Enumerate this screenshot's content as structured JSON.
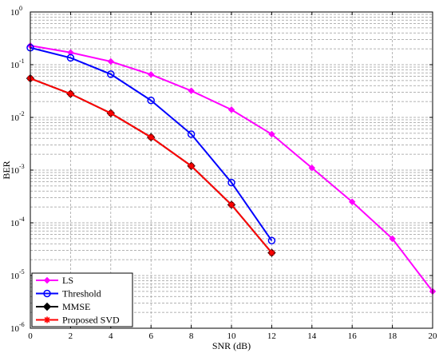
{
  "chart_data": {
    "type": "line",
    "title": "",
    "xlabel": "SNR (dB)",
    "ylabel": "BER",
    "xlim": [
      0,
      20
    ],
    "ylim": [
      1e-06,
      1
    ],
    "yscale": "log",
    "grid": true,
    "legend_position": "bottom-left",
    "x_ticks": [
      0,
      2,
      4,
      6,
      8,
      10,
      12,
      14,
      16,
      18,
      20
    ],
    "y_ticks": [
      {
        "base": "10",
        "exp": "0"
      },
      {
        "base": "10",
        "exp": "-1"
      },
      {
        "base": "10",
        "exp": "-2"
      },
      {
        "base": "10",
        "exp": "-3"
      },
      {
        "base": "10",
        "exp": "-4"
      },
      {
        "base": "10",
        "exp": "-5"
      },
      {
        "base": "10",
        "exp": "-6"
      }
    ],
    "series": [
      {
        "name": "LS",
        "color": "#ff00ff",
        "marker": "diamond",
        "x": [
          0,
          2,
          4,
          6,
          8,
          10,
          12,
          14,
          16,
          18,
          20
        ],
        "y": [
          0.23,
          0.17,
          0.115,
          0.065,
          0.032,
          0.014,
          0.0048,
          0.0011,
          0.00025,
          5e-05,
          5e-06
        ]
      },
      {
        "name": "Threshold",
        "color": "#0000ff",
        "marker": "circle",
        "x": [
          0,
          2,
          4,
          6,
          8,
          10,
          12
        ],
        "y": [
          0.21,
          0.135,
          0.066,
          0.021,
          0.0048,
          0.00058,
          4.6e-05
        ]
      },
      {
        "name": "MMSE",
        "color": "#000000",
        "marker": "diamond",
        "x": [
          0,
          2,
          4,
          6,
          8,
          10,
          12
        ],
        "y": [
          0.055,
          0.028,
          0.012,
          0.0042,
          0.0012,
          0.00022,
          2.7e-05
        ]
      },
      {
        "name": "Proposed SVD",
        "color": "#ff0000",
        "marker": "star",
        "x": [
          0,
          2,
          4,
          6,
          8,
          10,
          12
        ],
        "y": [
          0.055,
          0.028,
          0.012,
          0.0042,
          0.0012,
          0.00022,
          2.7e-05
        ]
      }
    ]
  }
}
